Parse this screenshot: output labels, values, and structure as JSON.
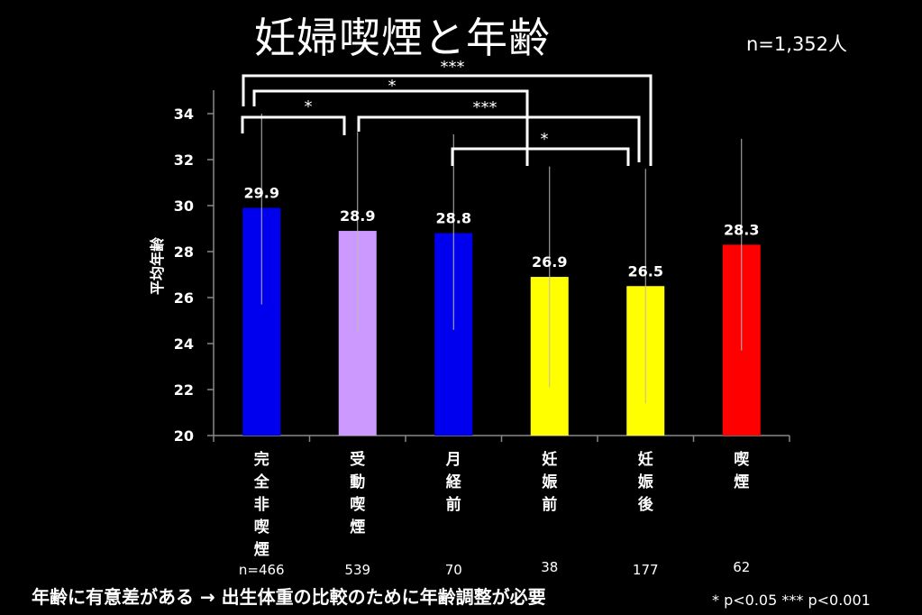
{
  "title": "妊婦喫煙と年齢",
  "total_n": "n=1,352人",
  "footnote": "年齢に有意差がある → 出生体重の比較のために年齢調整が必要",
  "significance_legend": "* p<0.05  *** p<0.001",
  "chart_data": {
    "type": "bar",
    "ylabel": "平均年齢",
    "ylim": [
      20,
      35
    ],
    "yticks": [
      20,
      22,
      24,
      26,
      28,
      30,
      32,
      34
    ],
    "categories": [
      "完全非喫煙",
      "受動喫煙",
      "月経前",
      "妊娠前",
      "妊娠後",
      "喫煙"
    ],
    "values": [
      29.9,
      28.9,
      28.8,
      26.9,
      26.5,
      28.3
    ],
    "value_labels": [
      "29.9",
      "28.9",
      "28.8",
      "26.9",
      "26.5",
      "28.3"
    ],
    "error_low": [
      25.7,
      24.5,
      24.6,
      22.1,
      21.4,
      23.7
    ],
    "error_high": [
      34.0,
      33.2,
      33.1,
      31.7,
      31.6,
      32.9
    ],
    "n_labels": [
      "n=466",
      "539",
      "70",
      "38",
      "177",
      "62"
    ],
    "colors": [
      "#0000ee",
      "#cc99ff",
      "#0000ee",
      "#ffff00",
      "#ffff00",
      "#ff0000"
    ],
    "significance": [
      {
        "from": 0,
        "to": 4,
        "label": "***"
      },
      {
        "from": 0,
        "to": 3,
        "label": "*"
      },
      {
        "from": 0,
        "to": 1,
        "label": "*"
      },
      {
        "from": 1,
        "to": 4,
        "label": "***"
      },
      {
        "from": 2,
        "to": 4,
        "label": "*"
      }
    ]
  }
}
